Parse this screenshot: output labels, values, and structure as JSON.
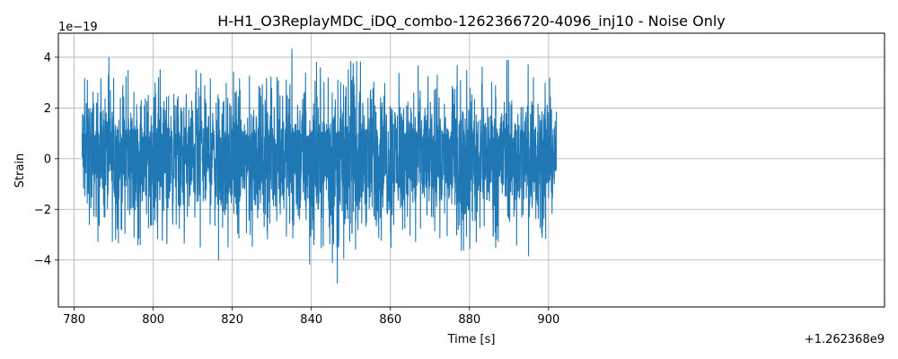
{
  "chart_data": {
    "type": "line",
    "title": "H-H1_O3ReplayMDC_iDQ_combo-1262366720-4096_inj10 - Noise Only",
    "xlabel": "Time [s]",
    "ylabel": "Strain",
    "x_offset_label": "+1.262368e9",
    "y_scale_label": "1e−19",
    "xlim": [
      776,
      985
    ],
    "ylim": [
      -5.85,
      4.95
    ],
    "x_ticks": [
      780,
      800,
      820,
      840,
      860,
      880,
      900
    ],
    "x_tick_labels": [
      "780",
      "800",
      "820",
      "840",
      "860",
      "880",
      "900"
    ],
    "y_ticks": [
      -4,
      -2,
      0,
      2,
      4
    ],
    "y_tick_labels": [
      "−4",
      "−2",
      "0",
      "2",
      "4"
    ],
    "grid": true,
    "series": [
      {
        "color": "#1f77b4",
        "x_range": [
          782,
          902
        ],
        "envelope_x": [
          782,
          783,
          785,
          787,
          789,
          791,
          793,
          795,
          800,
          805,
          810,
          815,
          817,
          820,
          825,
          830,
          835,
          840,
          843,
          845,
          847,
          850,
          855,
          860,
          865,
          870,
          875,
          880,
          885,
          890,
          895,
          898,
          900,
          902
        ],
        "envelope_max": [
          3.3,
          4.2,
          3.9,
          3.5,
          4.1,
          3.2,
          3.6,
          3.4,
          3.9,
          3.5,
          3.7,
          3.5,
          3.8,
          3.6,
          3.7,
          3.9,
          4.5,
          3.8,
          4.0,
          3.9,
          3.7,
          3.9,
          3.9,
          3.8,
          4.0,
          3.7,
          3.6,
          3.9,
          3.7,
          4.0,
          4.1,
          4.0,
          3.5,
          2.4
        ],
        "envelope_min": [
          -2.2,
          -3.6,
          -3.3,
          -3.5,
          -3.8,
          -4.6,
          -3.6,
          -3.6,
          -3.6,
          -3.6,
          -3.6,
          -3.4,
          -4.3,
          -3.6,
          -3.5,
          -3.7,
          -3.6,
          -4.6,
          -3.8,
          -3.9,
          -5.4,
          -4.0,
          -4.2,
          -3.7,
          -3.6,
          -3.6,
          -3.7,
          -3.6,
          -3.8,
          -3.5,
          -3.9,
          -3.6,
          -3.2,
          -2.3
        ]
      }
    ]
  }
}
